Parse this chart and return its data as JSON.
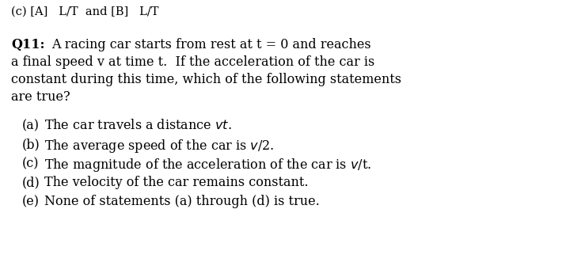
{
  "background_color": "#ffffff",
  "header_text": "(c) [A]   L/T  and [B]   L/T",
  "question_label": "Q11:",
  "question_lines": [
    "A racing car starts from rest at t = 0 and reaches",
    "a final speed v at time t.  If the acceleration of the car is",
    "constant during this time, which of the following statements",
    "are true?"
  ],
  "options": [
    {
      "label": "(a)",
      "text": "The car travels a distance $\\mathit{vt}$."
    },
    {
      "label": "(b)",
      "text": "The average speed of the car is $\\mathit{v}$/2."
    },
    {
      "label": "(c)",
      "text": "The magnitude of the acceleration of the car is $\\mathit{v}$/t."
    },
    {
      "label": "(d)",
      "text": "The velocity of the car remains constant."
    },
    {
      "label": "(e)",
      "text": "None of statements (a) through (d) is true."
    }
  ],
  "font_size": 11.5,
  "header_font_size": 10.5,
  "font_family": "serif",
  "text_color": "#000000",
  "fig_width": 7.2,
  "fig_height": 3.36,
  "dpi": 100
}
